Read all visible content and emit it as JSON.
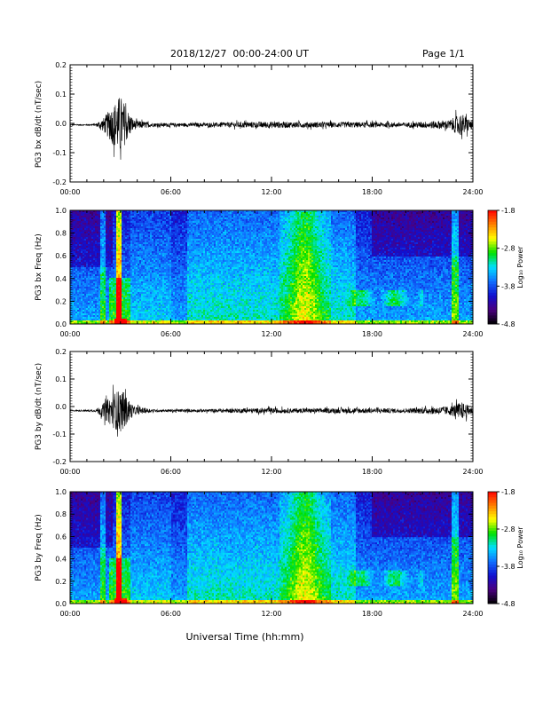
{
  "header": {
    "date_range": "2018/12/27  00:00-24:00 UT",
    "page": "Page 1/1"
  },
  "xaxis": {
    "title": "Universal Time (hh:mm)",
    "ticks": [
      "00:00",
      "06:00",
      "12:00",
      "18:00",
      "24:00"
    ]
  },
  "colorbar": {
    "title": "Log₁₀ Power",
    "ticks": [
      "-1.8",
      "-2.8",
      "-3.8",
      "-4.8"
    ],
    "range": [
      -4.8,
      -1.8
    ],
    "colors": [
      "#000000",
      "#4a0080",
      "#1010d0",
      "#1070ff",
      "#00e0ff",
      "#00e000",
      "#ffff00",
      "#ff8000",
      "#ff0000"
    ]
  },
  "chart_data": [
    {
      "type": "line",
      "ylabel": "PG3 bx dB/dt (nT/sec)",
      "xlim": [
        0,
        24
      ],
      "ylim": [
        -0.2,
        0.2
      ],
      "yticks": [
        "0.2",
        "0.1",
        "0.0",
        "-0.1",
        "-0.2"
      ],
      "baseline": -0.005,
      "envelope_hours": [
        0,
        1.5,
        2.0,
        2.6,
        3.0,
        3.3,
        3.8,
        5,
        8,
        10,
        12,
        14,
        17,
        20,
        22.6,
        23.3,
        24
      ],
      "envelope_amplitude": [
        0.002,
        0.004,
        0.03,
        0.09,
        0.13,
        0.08,
        0.02,
        0.008,
        0.008,
        0.012,
        0.014,
        0.012,
        0.012,
        0.01,
        0.02,
        0.05,
        0.015
      ]
    },
    {
      "type": "heatmap",
      "ylabel": "PG3 bx Freq (Hz)",
      "xlim": [
        0,
        24
      ],
      "ylim": [
        0.0,
        1.0
      ],
      "yticks": [
        "1.0",
        "0.8",
        "0.6",
        "0.4",
        "0.2",
        "0.0"
      ],
      "zlim": [
        -4.8,
        -1.8
      ],
      "zlabel": "Log₁₀ Power"
    },
    {
      "type": "line",
      "ylabel": "PG3 by dB/dt (nT/sec)",
      "xlim": [
        0,
        24
      ],
      "ylim": [
        -0.2,
        0.2
      ],
      "yticks": [
        "0.2",
        "0.1",
        "0.0",
        "-0.1",
        "-0.2"
      ],
      "baseline": -0.015,
      "envelope_hours": [
        0,
        1.5,
        2.0,
        2.6,
        3.0,
        3.3,
        3.8,
        5,
        8,
        10,
        12,
        14,
        17,
        20,
        22.6,
        23.3,
        24
      ],
      "envelope_amplitude": [
        0.002,
        0.005,
        0.035,
        0.08,
        0.1,
        0.07,
        0.02,
        0.006,
        0.007,
        0.01,
        0.012,
        0.01,
        0.012,
        0.01,
        0.02,
        0.04,
        0.015
      ]
    },
    {
      "type": "heatmap",
      "ylabel": "PG3 by Freq (Hz)",
      "xlim": [
        0,
        24
      ],
      "ylim": [
        0.0,
        1.0
      ],
      "yticks": [
        "1.0",
        "0.8",
        "0.6",
        "0.4",
        "0.2",
        "0.0"
      ],
      "zlim": [
        -4.8,
        -1.8
      ],
      "zlabel": "Log₁₀ Power"
    }
  ]
}
